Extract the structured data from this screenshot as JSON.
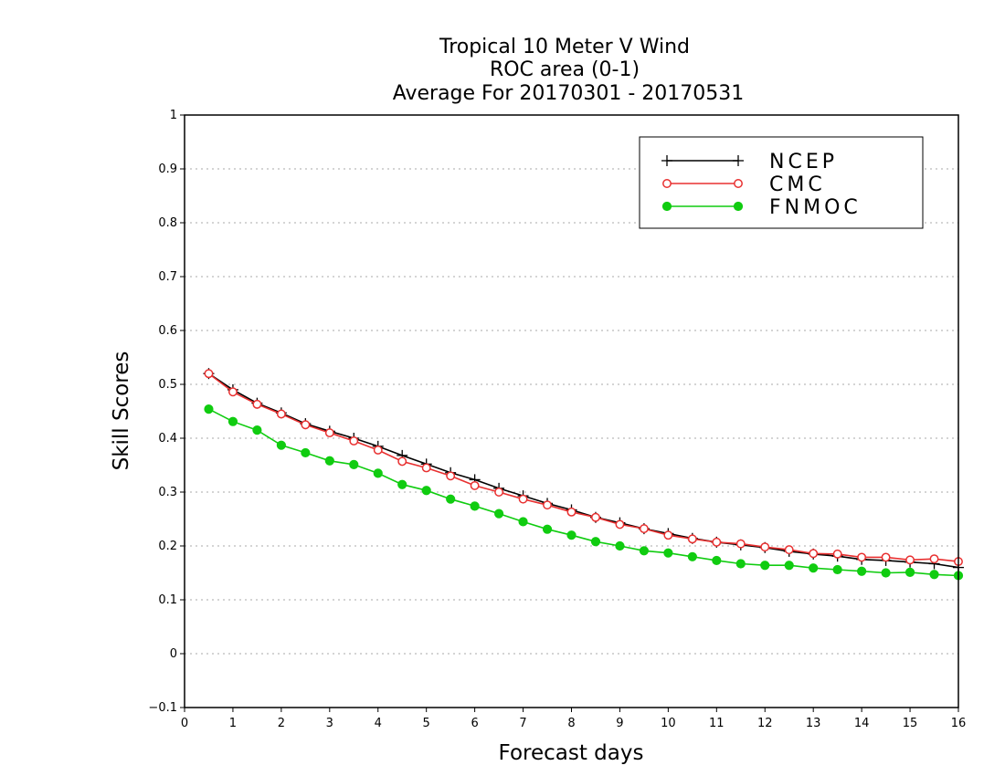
{
  "chart_data": {
    "type": "line",
    "title_lines": [
      "Tropical 10 Meter V Wind",
      "ROC area (0-1)",
      "Average For 20170301 - 20170531"
    ],
    "xlabel": "Forecast days",
    "ylabel": "Skill Scores",
    "xlim": [
      0,
      16
    ],
    "ylim": [
      -0.1,
      1
    ],
    "xticks": [
      "0",
      "1",
      "2",
      "3",
      "4",
      "5",
      "6",
      "7",
      "8",
      "9",
      "10",
      "11",
      "12",
      "13",
      "14",
      "15",
      "16"
    ],
    "yticks": [
      "-0.1",
      "0",
      "0.1",
      "0.2",
      "0.3",
      "0.4",
      "0.5",
      "0.6",
      "0.7",
      "0.8",
      "0.9",
      "1"
    ],
    "grid": true,
    "legend_position": "top-right",
    "x": [
      0.5,
      1,
      1.5,
      2,
      2.5,
      3,
      3.5,
      4,
      4.5,
      5,
      5.5,
      6,
      6.5,
      7,
      7.5,
      8,
      8.5,
      9,
      9.5,
      10,
      10.5,
      11,
      11.5,
      12,
      12.5,
      13,
      13.5,
      14,
      14.5,
      15,
      15.5,
      16
    ],
    "series": [
      {
        "name": "NCEP",
        "color": "#000000",
        "marker": "plus",
        "values": [
          0.52,
          0.49,
          0.465,
          0.447,
          0.427,
          0.413,
          0.4,
          0.385,
          0.368,
          0.352,
          0.336,
          0.323,
          0.307,
          0.293,
          0.279,
          0.267,
          0.253,
          0.243,
          0.232,
          0.223,
          0.214,
          0.207,
          0.202,
          0.197,
          0.19,
          0.185,
          0.181,
          0.175,
          0.173,
          0.17,
          0.167,
          0.16
        ]
      },
      {
        "name": "CMC",
        "color": "#e83030",
        "marker": "open-circle",
        "values": [
          0.52,
          0.486,
          0.463,
          0.445,
          0.425,
          0.41,
          0.395,
          0.378,
          0.357,
          0.345,
          0.33,
          0.312,
          0.3,
          0.287,
          0.276,
          0.263,
          0.253,
          0.24,
          0.232,
          0.22,
          0.213,
          0.207,
          0.204,
          0.198,
          0.193,
          0.186,
          0.185,
          0.179,
          0.179,
          0.174,
          0.176,
          0.171
        ]
      },
      {
        "name": "FNMOC",
        "color": "#10cc10",
        "marker": "filled-circle",
        "values": [
          0.454,
          0.431,
          0.415,
          0.387,
          0.373,
          0.358,
          0.351,
          0.335,
          0.314,
          0.303,
          0.287,
          0.274,
          0.26,
          0.245,
          0.231,
          0.22,
          0.208,
          0.2,
          0.191,
          0.187,
          0.18,
          0.173,
          0.167,
          0.164,
          0.164,
          0.159,
          0.156,
          0.153,
          0.15,
          0.151,
          0.147,
          0.145
        ]
      }
    ]
  }
}
